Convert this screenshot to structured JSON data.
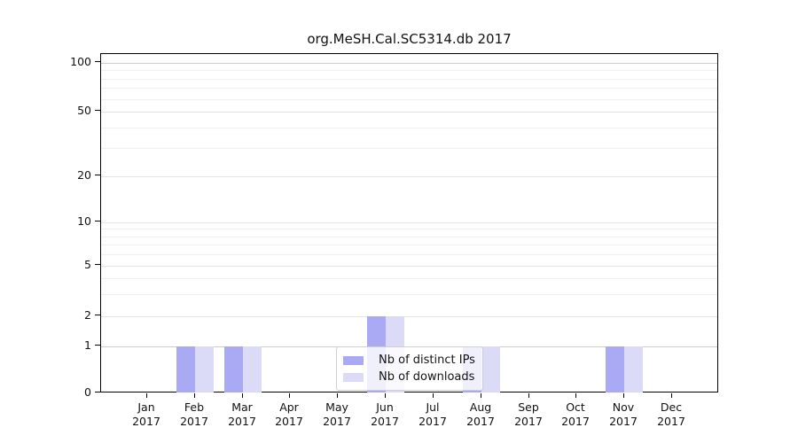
{
  "chart_data": {
    "type": "bar",
    "title": "org.MeSH.Cal.SC5314.db 2017",
    "categories": [
      "Jan 2017",
      "Feb 2017",
      "Mar 2017",
      "Apr 2017",
      "May 2017",
      "Jun 2017",
      "Jul 2017",
      "Aug 2017",
      "Sep 2017",
      "Oct 2017",
      "Nov 2017",
      "Dec 2017"
    ],
    "series": [
      {
        "name": "Nb of distinct IPs",
        "color": "#a9a9f4",
        "values": [
          0,
          1,
          1,
          0,
          0,
          2,
          0,
          1,
          0,
          0,
          1,
          0
        ]
      },
      {
        "name": "Nb of downloads",
        "color": "#dbdbf8",
        "values": [
          0,
          1,
          1,
          0,
          0,
          2,
          0,
          1,
          0,
          0,
          1,
          0
        ]
      }
    ],
    "xlabel": "",
    "ylabel": "",
    "yscale": "log above 1, linear 0-1",
    "yticks": [
      0,
      1,
      2,
      5,
      10,
      20,
      50,
      100
    ],
    "minor_gridlines": [
      3,
      4,
      6,
      7,
      8,
      9,
      30,
      40,
      60,
      70,
      80,
      90
    ],
    "ylim": [
      0,
      113
    ],
    "grid": true,
    "legend_position": "inside lower center",
    "colors": {
      "grid_minor": "#efefef",
      "grid_major": "#e3e3e3",
      "grid_emphasis": "#cccccc",
      "axis": "#000000"
    }
  }
}
